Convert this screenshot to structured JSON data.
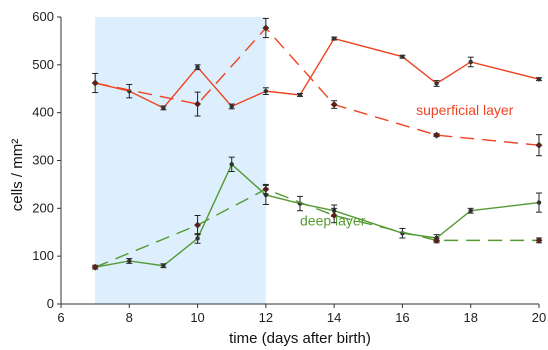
{
  "chart_data": {
    "type": "line",
    "xlabel": "time (days after birth)",
    "ylabel": "cells / mm²",
    "xlim": [
      6,
      20
    ],
    "ylim": [
      0,
      600
    ],
    "x_ticks": [
      6,
      8,
      10,
      12,
      14,
      16,
      18,
      20
    ],
    "y_ticks": [
      0,
      100,
      200,
      300,
      400,
      500,
      600
    ],
    "grid": false,
    "shaded_region": {
      "x": [
        7,
        12
      ],
      "color": "#ddeefc"
    },
    "series": [
      {
        "id": "superficial_solid",
        "color": "#ee4422",
        "style": "solid",
        "marker": "circle",
        "points": [
          {
            "x": 7,
            "y": 462,
            "err": 20
          },
          {
            "x": 8,
            "y": 445,
            "err": 14
          },
          {
            "x": 9,
            "y": 410,
            "err": 4
          },
          {
            "x": 10,
            "y": 495,
            "err": 5
          },
          {
            "x": 11,
            "y": 413,
            "err": 5
          },
          {
            "x": 12,
            "y": 445,
            "err": 7
          },
          {
            "x": 13,
            "y": 437,
            "err": 3
          },
          {
            "x": 14,
            "y": 555,
            "err": 3
          },
          {
            "x": 16,
            "y": 517,
            "err": 3
          },
          {
            "x": 17,
            "y": 461,
            "err": 6
          },
          {
            "x": 18,
            "y": 506,
            "err": 10
          },
          {
            "x": 20,
            "y": 470,
            "err": 3
          }
        ]
      },
      {
        "id": "superficial_dashed",
        "color": "#ee4422",
        "style": "dashed",
        "marker": "diamond",
        "points": [
          {
            "x": 7,
            "y": 462,
            "err": 0
          },
          {
            "x": 10,
            "y": 418,
            "err": 25
          },
          {
            "x": 12,
            "y": 577,
            "err": 20
          },
          {
            "x": 14,
            "y": 417,
            "err": 8
          },
          {
            "x": 17,
            "y": 353,
            "err": 3
          },
          {
            "x": 20,
            "y": 332,
            "err": 22
          }
        ]
      },
      {
        "id": "deep_solid",
        "color": "#559933",
        "style": "solid",
        "marker": "circle",
        "points": [
          {
            "x": 7,
            "y": 77,
            "err": 4
          },
          {
            "x": 8,
            "y": 90,
            "err": 5
          },
          {
            "x": 9,
            "y": 80,
            "err": 4
          },
          {
            "x": 10,
            "y": 137,
            "err": 10
          },
          {
            "x": 11,
            "y": 292,
            "err": 15
          },
          {
            "x": 12,
            "y": 228,
            "err": 20
          },
          {
            "x": 13,
            "y": 210,
            "err": 15
          },
          {
            "x": 14,
            "y": 195,
            "err": 12
          },
          {
            "x": 16,
            "y": 148,
            "err": 10
          },
          {
            "x": 17,
            "y": 138,
            "err": 7
          },
          {
            "x": 18,
            "y": 195,
            "err": 5
          },
          {
            "x": 20,
            "y": 212,
            "err": 20
          }
        ]
      },
      {
        "id": "deep_dashed",
        "color": "#559933",
        "style": "dashed",
        "marker": "diamond",
        "points": [
          {
            "x": 7,
            "y": 77,
            "err": 0
          },
          {
            "x": 10,
            "y": 165,
            "err": 20
          },
          {
            "x": 12,
            "y": 240,
            "err": 10
          },
          {
            "x": 14,
            "y": 185,
            "err": 15
          },
          {
            "x": 17,
            "y": 133,
            "err": 5
          },
          {
            "x": 20,
            "y": 133,
            "err": 5
          }
        ]
      }
    ],
    "annotations": [
      {
        "text": "superficial layer",
        "x": 16.4,
        "y": 395,
        "color": "#ee4422"
      },
      {
        "text": "deep layer",
        "x": 13.0,
        "y": 164,
        "color": "#559933"
      }
    ]
  }
}
